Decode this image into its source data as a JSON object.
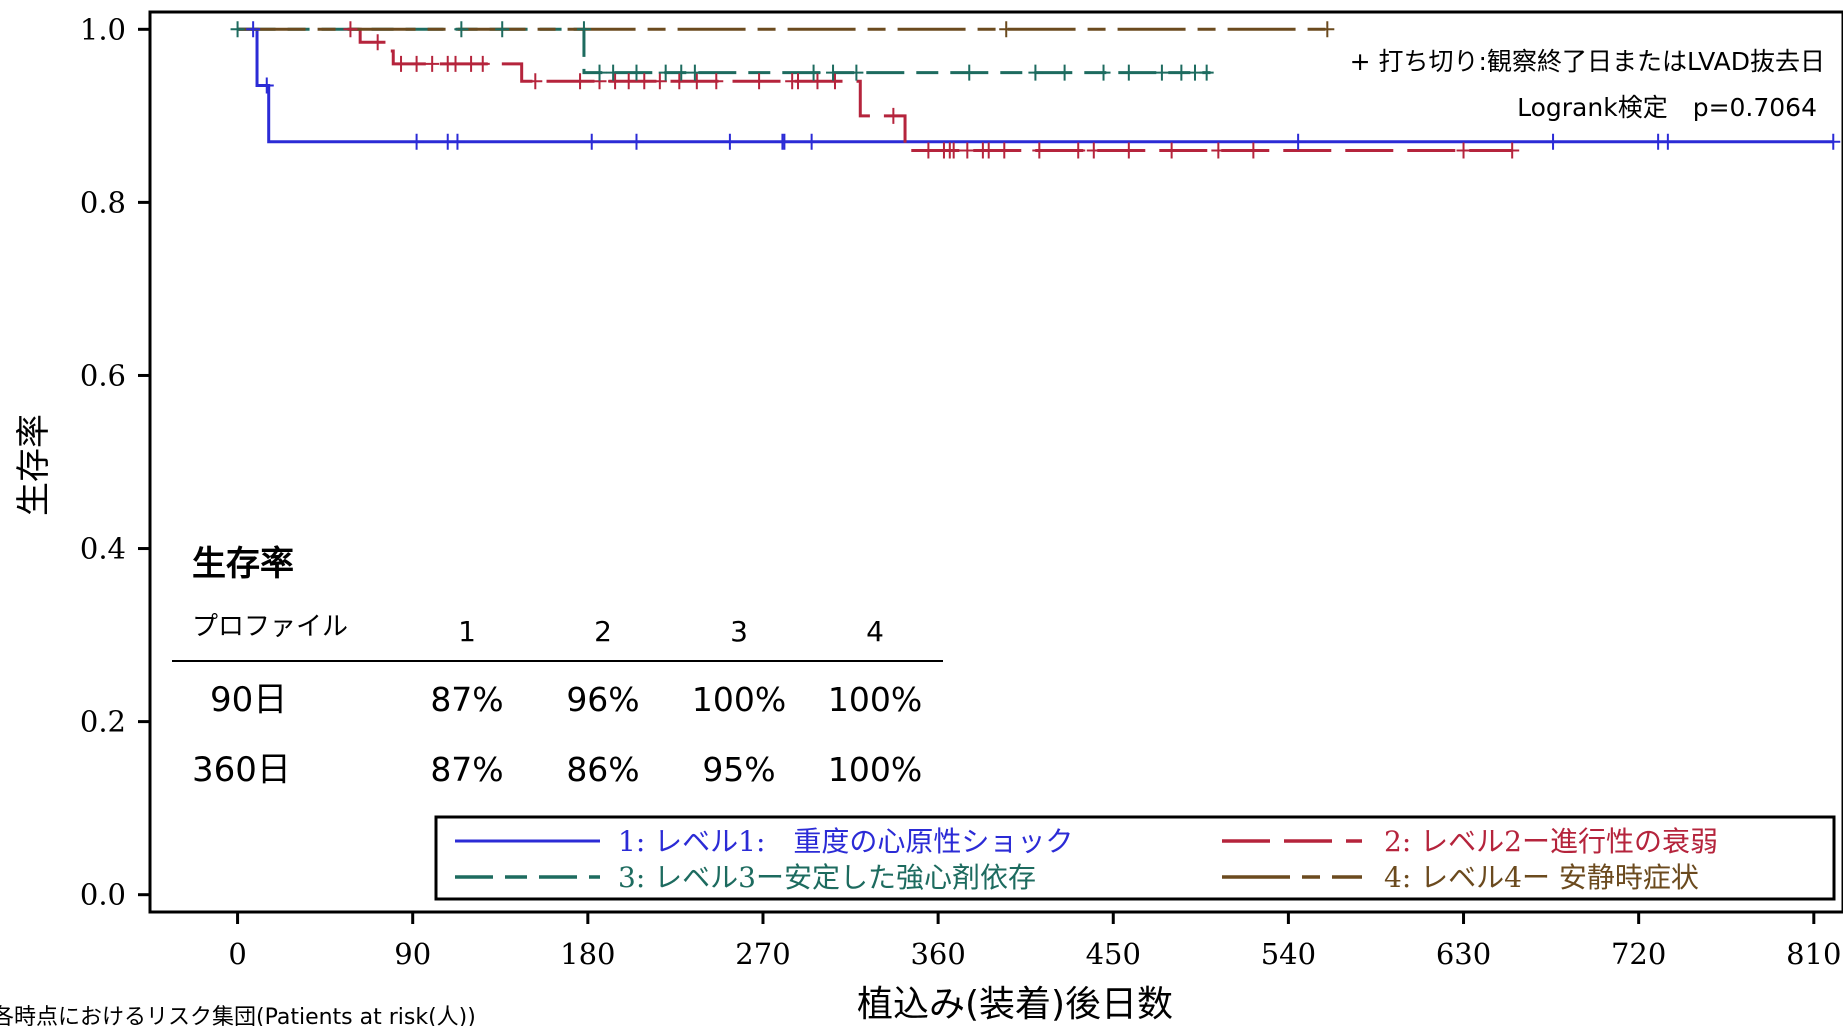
{
  "chart_data": {
    "type": "line",
    "title": "",
    "xlabel": "植込み(装着)後日数",
    "ylabel": "生存率",
    "xlim": [
      -45,
      825
    ],
    "ylim": [
      -0.02,
      1.02
    ],
    "xticks": [
      0,
      90,
      180,
      270,
      360,
      450,
      540,
      630,
      720,
      810
    ],
    "yticks": [
      0.0,
      0.2,
      0.4,
      0.6,
      0.8,
      1.0
    ],
    "ytick_labels": [
      "0.0",
      "0.2",
      "0.4",
      "0.6",
      "0.8",
      "1.0"
    ],
    "grid": false,
    "legend_position": "bottom-right",
    "censor_note": "+ 打ち切り:観察終了日またはLVAD抜去日",
    "logrank": "Logrank検定　p=0.7064",
    "series": [
      {
        "name": "1: レベル1:　重度の心原性ショック",
        "color": "#2b2bd6",
        "dash": "solid",
        "steps": [
          [
            0,
            1.0
          ],
          [
            10,
            0.935
          ],
          [
            16,
            0.87
          ],
          [
            820,
            0.87
          ]
        ],
        "censored": [
          [
            8,
            1.0
          ],
          [
            15,
            0.935
          ],
          [
            92,
            0.87
          ],
          [
            108,
            0.87
          ],
          [
            113,
            0.87
          ],
          [
            182,
            0.87
          ],
          [
            205,
            0.87
          ],
          [
            253,
            0.87
          ],
          [
            280,
            0.87
          ],
          [
            281,
            0.87
          ],
          [
            295,
            0.87
          ],
          [
            545,
            0.87
          ],
          [
            676,
            0.87
          ],
          [
            730,
            0.87
          ],
          [
            735,
            0.87
          ],
          [
            820,
            0.87
          ]
        ]
      },
      {
        "name": "2: レベル2ー進行性の衰弱",
        "color": "#b5243c",
        "dash": "long",
        "steps": [
          [
            58,
            1.0
          ],
          [
            63,
            0.985
          ],
          [
            78,
            0.975
          ],
          [
            80,
            0.96
          ],
          [
            146,
            0.96
          ],
          [
            146,
            0.94
          ],
          [
            320,
            0.94
          ],
          [
            320,
            0.9
          ],
          [
            343,
            0.9
          ],
          [
            343,
            0.86
          ],
          [
            655,
            0.86
          ]
        ],
        "censored": [
          [
            58,
            1.0
          ],
          [
            72,
            0.985
          ],
          [
            84,
            0.96
          ],
          [
            92,
            0.96
          ],
          [
            100,
            0.96
          ],
          [
            108,
            0.96
          ],
          [
            112,
            0.96
          ],
          [
            120,
            0.96
          ],
          [
            126,
            0.96
          ],
          [
            153,
            0.94
          ],
          [
            176,
            0.94
          ],
          [
            186,
            0.94
          ],
          [
            194,
            0.94
          ],
          [
            201,
            0.94
          ],
          [
            209,
            0.94
          ],
          [
            217,
            0.94
          ],
          [
            227,
            0.94
          ],
          [
            236,
            0.94
          ],
          [
            246,
            0.94
          ],
          [
            268,
            0.94
          ],
          [
            285,
            0.94
          ],
          [
            288,
            0.94
          ],
          [
            298,
            0.94
          ],
          [
            307,
            0.94
          ],
          [
            337,
            0.9
          ],
          [
            355,
            0.86
          ],
          [
            363,
            0.86
          ],
          [
            366,
            0.86
          ],
          [
            368,
            0.86
          ],
          [
            375,
            0.86
          ],
          [
            383,
            0.86
          ],
          [
            386,
            0.86
          ],
          [
            394,
            0.86
          ],
          [
            412,
            0.86
          ],
          [
            432,
            0.86
          ],
          [
            440,
            0.86
          ],
          [
            458,
            0.86
          ],
          [
            480,
            0.86
          ],
          [
            504,
            0.86
          ],
          [
            522,
            0.86
          ],
          [
            630,
            0.86
          ],
          [
            655,
            0.86
          ]
        ]
      },
      {
        "name": "3: レベル3ー安定した強心剤依存",
        "color": "#1d6b5f",
        "dash": "dashed",
        "steps": [
          [
            0,
            1.0
          ],
          [
            178,
            1.0
          ],
          [
            178,
            0.95
          ],
          [
            500,
            0.95
          ]
        ],
        "censored": [
          [
            0,
            1.0
          ],
          [
            115,
            1.0
          ],
          [
            136,
            1.0
          ],
          [
            178,
            1.0
          ],
          [
            186,
            0.95
          ],
          [
            193,
            0.95
          ],
          [
            205,
            0.95
          ],
          [
            220,
            0.95
          ],
          [
            228,
            0.95
          ],
          [
            235,
            0.95
          ],
          [
            296,
            0.95
          ],
          [
            306,
            0.95
          ],
          [
            318,
            0.95
          ],
          [
            376,
            0.95
          ],
          [
            410,
            0.95
          ],
          [
            425,
            0.95
          ],
          [
            445,
            0.95
          ],
          [
            458,
            0.95
          ],
          [
            475,
            0.95
          ],
          [
            485,
            0.95
          ],
          [
            492,
            0.95
          ],
          [
            498,
            0.95
          ]
        ]
      },
      {
        "name": "4: レベル4ー 安静時症状",
        "color": "#6b4a1e",
        "dash": "longshort",
        "steps": [
          [
            0,
            1.0
          ],
          [
            560,
            1.0
          ]
        ],
        "censored": [
          [
            395,
            1.0
          ],
          [
            560,
            1.0
          ]
        ]
      }
    ]
  },
  "survival_table": {
    "title": "生存率",
    "header": [
      "プロファイル",
      "1",
      "2",
      "3",
      "4"
    ],
    "rows": [
      [
        "90日",
        "87%",
        "96%",
        "100%",
        "100%"
      ],
      [
        "360日",
        "87%",
        "86%",
        "95%",
        "100%"
      ]
    ]
  },
  "footer_note": "各時点におけるリスク集団(Patients at risk(人))"
}
